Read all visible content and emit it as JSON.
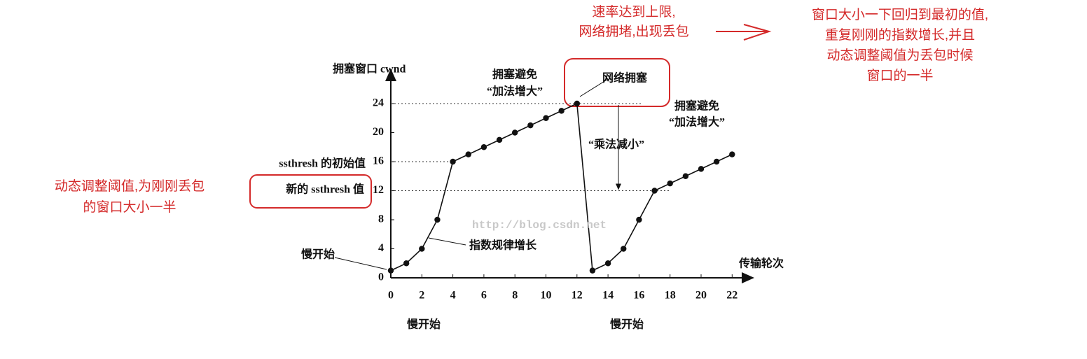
{
  "chart_data": {
    "type": "line",
    "x_label": "传输轮次",
    "y_label": "拥塞窗口 cwnd",
    "x": [
      0,
      1,
      2,
      3,
      4,
      5,
      6,
      7,
      8,
      9,
      10,
      11,
      12,
      13,
      14,
      15,
      16,
      17,
      18,
      19,
      20,
      21,
      22
    ],
    "series": [
      {
        "color": "#111111",
        "values": [
          1,
          2,
          4,
          8,
          16,
          17,
          18,
          19,
          20,
          21,
          22,
          23,
          24,
          1,
          2,
          4,
          8,
          12,
          13,
          14,
          15,
          16,
          17
        ]
      }
    ],
    "xlim": [
      0,
      23
    ],
    "ylim": [
      0,
      28
    ],
    "xticks": [
      0,
      2,
      4,
      6,
      8,
      10,
      12,
      14,
      16,
      18,
      20,
      22
    ],
    "yticks": [
      0,
      4,
      8,
      12,
      16,
      20,
      24
    ],
    "annotations": [
      "拥塞避免",
      "“加法增大”",
      "网络拥塞",
      "拥塞避免",
      "“加法增大”",
      "“乘法减小”",
      "ssthresh 的初始值",
      "新的 ssthresh 值",
      "慢开始",
      "指数规律增长",
      "慢开始",
      "慢开始",
      "http://blog.csdn.net"
    ],
    "notes": [
      {
        "lines": [
          "速率达到上限,",
          "网络拥堵,出现丢包"
        ]
      },
      {
        "lines": [
          "窗口大小一下回归到最初的值,",
          "重复刚刚的指数增长,并且",
          "动态调整阈值为丢包时候",
          "窗口的一半"
        ]
      },
      {
        "lines": [
          "动态调整阈值,为刚刚丢包",
          "的窗口大小一半"
        ]
      }
    ]
  }
}
